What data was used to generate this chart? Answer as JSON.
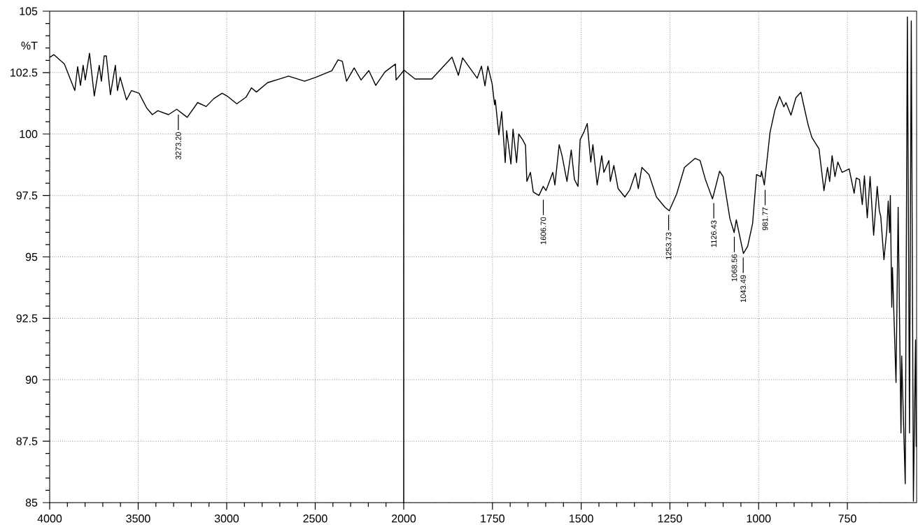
{
  "chart_data": [
    {
      "type": "line",
      "ylabel": "%T",
      "xlim": [
        4000,
        2000
      ],
      "xticks": [
        4000,
        3500,
        3000,
        2500,
        2000
      ],
      "ylim": [
        85,
        105
      ],
      "yticks": [
        85,
        87.5,
        90,
        92.5,
        95,
        97.5,
        100,
        102.5,
        105
      ],
      "grid": true,
      "series": [
        {
          "color": "#000000",
          "x": [
            4000,
            3976,
            3917,
            3858,
            3842,
            3826,
            3811,
            3799,
            3775,
            3748,
            3720,
            3708,
            3692,
            3680,
            3657,
            3629,
            3617,
            3602,
            3566,
            3538,
            3495,
            3452,
            3420,
            3389,
            3329,
            3282,
            3223,
            3164,
            3116,
            3073,
            3026,
            2998,
            2943,
            2891,
            2860,
            2832,
            2769,
            2694,
            2651,
            2560,
            2497,
            2406,
            2371,
            2347,
            2323,
            2280,
            2241,
            2197,
            2158,
            2106,
            2047,
            2043,
            2000
          ],
          "values": [
            103.12,
            103.23,
            102.85,
            101.77,
            102.74,
            101.98,
            102.8,
            102.2,
            103.29,
            101.55,
            102.8,
            102.15,
            103.18,
            103.18,
            101.6,
            102.8,
            101.77,
            102.31,
            101.39,
            101.77,
            101.66,
            101.06,
            100.79,
            100.95,
            100.79,
            101.01,
            100.68,
            101.28,
            101.12,
            101.44,
            101.66,
            101.55,
            101.23,
            101.5,
            101.88,
            101.71,
            102.09,
            102.26,
            102.36,
            102.15,
            102.31,
            102.58,
            103.02,
            102.96,
            102.15,
            102.69,
            102.2,
            102.58,
            101.98,
            102.53,
            102.85,
            102.2,
            102.58
          ]
        }
      ],
      "annotations": [
        {
          "text": "3273.20",
          "x": 3273.2,
          "y": 100.96
        }
      ]
    },
    {
      "type": "line",
      "xlim": [
        2000,
        555
      ],
      "xticks": [
        1750,
        1500,
        1250,
        1000,
        750
      ],
      "ylim": [
        85,
        105
      ],
      "yticks": [
        85,
        87.5,
        90,
        92.5,
        95,
        97.5,
        100,
        102.5,
        105
      ],
      "grid": true,
      "tick_labels": "x",
      "series": [
        {
          "color": "#000000",
          "x": [
            2000,
            1968,
            1921,
            1864,
            1846,
            1834,
            1793,
            1781,
            1771,
            1763,
            1751,
            1744,
            1742,
            1732,
            1724,
            1714,
            1710,
            1698,
            1692,
            1682,
            1676,
            1665,
            1657,
            1653,
            1643,
            1635,
            1619,
            1607,
            1599,
            1580,
            1574,
            1562,
            1554,
            1540,
            1528,
            1519,
            1509,
            1503,
            1493,
            1483,
            1473,
            1467,
            1455,
            1442,
            1436,
            1422,
            1418,
            1408,
            1396,
            1377,
            1363,
            1347,
            1339,
            1329,
            1309,
            1288,
            1264,
            1252,
            1231,
            1209,
            1179,
            1165,
            1150,
            1130,
            1110,
            1100,
            1081,
            1069,
            1063,
            1043,
            1031,
            1017,
            1006,
            994,
            992,
            984,
            968,
            954,
            941,
            929,
            923,
            909,
            895,
            881,
            869,
            860,
            850,
            830,
            816,
            806,
            800,
            793,
            785,
            777,
            765,
            745,
            731,
            725,
            716,
            708,
            702,
            694,
            686,
            676,
            666,
            660,
            656,
            647,
            639,
            635,
            631,
            629,
            625,
            623,
            613,
            607,
            599,
            597,
            587,
            581,
            575,
            570,
            564,
            558,
            556
          ],
          "values": [
            102.61,
            102.24,
            102.24,
            103.13,
            102.39,
            103.1,
            102.27,
            102.76,
            101.96,
            102.76,
            102.05,
            101.19,
            101.39,
            99.97,
            100.91,
            98.84,
            100.14,
            98.78,
            100.2,
            98.84,
            100.0,
            99.77,
            99.55,
            98.07,
            98.44,
            97.64,
            97.5,
            97.87,
            97.7,
            98.44,
            97.93,
            99.57,
            99.12,
            98.07,
            99.35,
            98.15,
            97.87,
            99.77,
            100.06,
            100.43,
            98.86,
            99.57,
            97.93,
            99.12,
            98.44,
            98.92,
            98.07,
            98.72,
            97.78,
            97.44,
            97.73,
            98.41,
            97.78,
            98.64,
            98.35,
            97.44,
            97.02,
            96.88,
            97.56,
            98.64,
            99.01,
            98.92,
            98.15,
            97.36,
            98.49,
            98.27,
            96.56,
            95.99,
            96.51,
            95.14,
            95.43,
            96.36,
            98.35,
            98.27,
            98.49,
            97.93,
            100.06,
            100.99,
            101.53,
            101.11,
            101.28,
            100.77,
            101.48,
            101.7,
            100.91,
            100.34,
            99.86,
            99.4,
            97.7,
            98.64,
            98.07,
            99.12,
            98.27,
            98.86,
            98.44,
            98.58,
            97.59,
            98.21,
            98.15,
            97.13,
            98.3,
            96.59,
            98.27,
            95.88,
            97.87,
            96.88,
            96.65,
            94.89,
            96.08,
            97.27,
            95.99,
            97.5,
            92.95,
            94.57,
            89.89,
            97.02,
            87.84,
            90.97,
            85.77,
            104.77,
            87.84,
            104.6,
            85.06,
            91.62,
            87.27
          ]
        }
      ],
      "annotations": [
        {
          "text": "1606.70",
          "x": 1606.7,
          "y": 97.5
        },
        {
          "text": "1253.73",
          "x": 1253.73,
          "y": 96.88
        },
        {
          "text": "1126.43",
          "x": 1126.43,
          "y": 97.36
        },
        {
          "text": "1068.56",
          "x": 1068.56,
          "y": 95.99
        },
        {
          "text": "1043.49",
          "x": 1043.49,
          "y": 95.14
        },
        {
          "text": "981.77",
          "x": 981.77,
          "y": 97.9
        }
      ]
    }
  ]
}
